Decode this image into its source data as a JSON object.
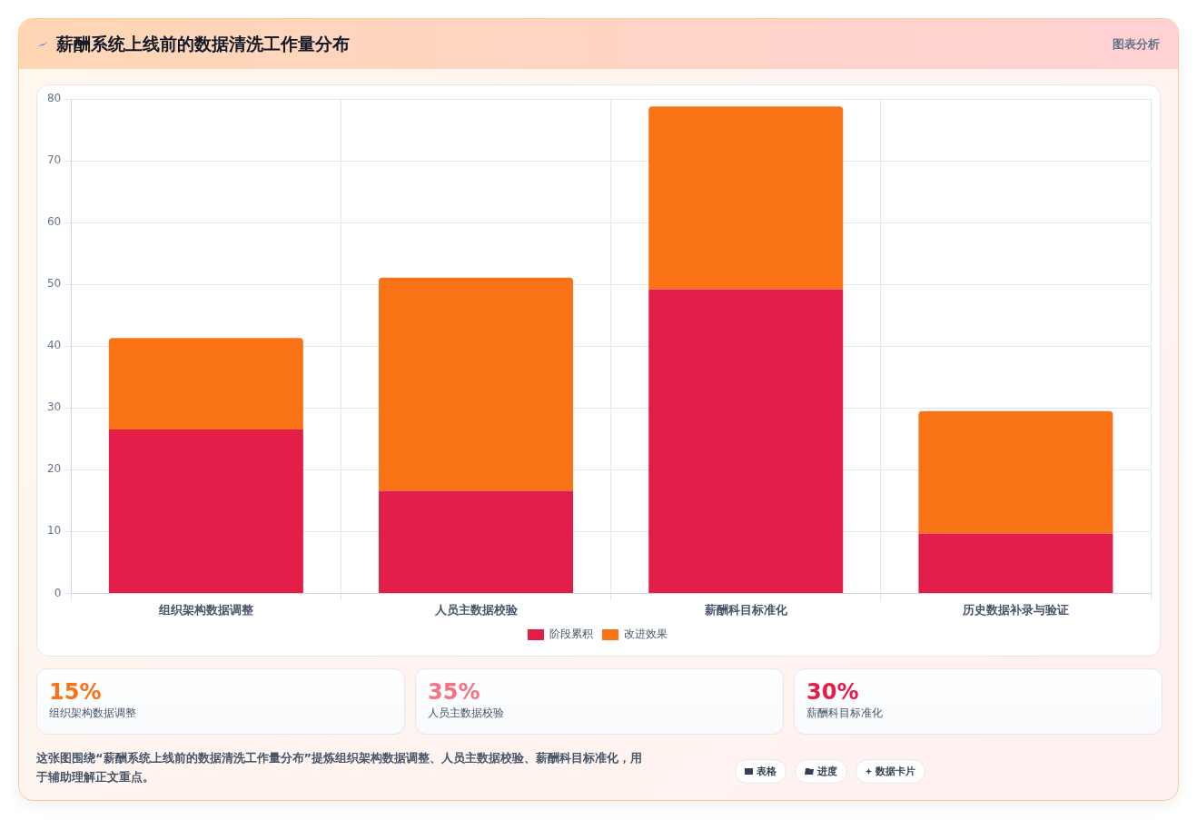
{
  "chart_data": [
    {
      "type": "bar",
      "title": "薪酬系统上线前的数据清洗工作量分布",
      "categories": [
        "组织架构数据调整",
        "人员主数据校验",
        "薪酬科目标准化",
        "历史数据补录与验证"
      ],
      "stacked": true,
      "series": [
        {
          "name": "阶段累积",
          "color": "#e11d48",
          "values": [
            26.5,
            16.6,
            49.2,
            9.7
          ]
        },
        {
          "name": "改进效果",
          "color": "#f97316",
          "values": [
            14.8,
            34.5,
            29.6,
            19.8
          ]
        }
      ],
      "ylim": [
        0,
        80
      ],
      "yticks": [
        0,
        10,
        20,
        30,
        40,
        50,
        60,
        70,
        80
      ],
      "grid": true,
      "legend": "bottom",
      "annotations": [
        "图表分析",
        "这张图围绕“薪酬系统上线前的数据清洗工作量分布”提炼组织架构数据调整、人员主数据校验、薪酬科目标准化，用于辅助理解正文重点。",
        "表格",
        "进度",
        "数据卡片"
      ]
    },
    {
      "type": "other",
      "categories": [
        "组织架构数据调整",
        "人员主数据校验",
        "薪酬科目标准化"
      ],
      "value_labels": [
        "15%",
        "35%",
        "30%"
      ]
    }
  ]
}
